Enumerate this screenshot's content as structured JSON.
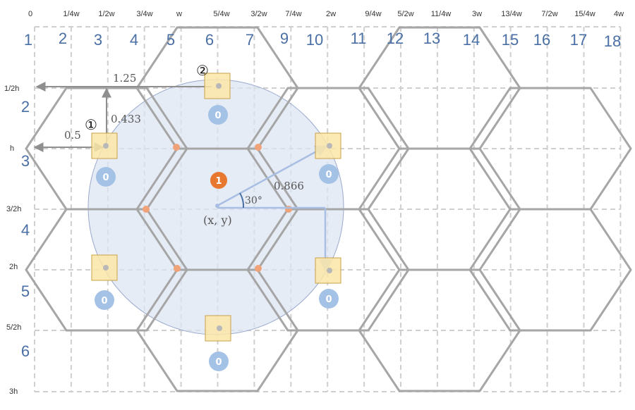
{
  "top_labels": [
    "0",
    "1/4w",
    "1/2w",
    "3/4w",
    "w",
    "5/4w",
    "3/2w",
    "7/4w",
    "2w",
    "9/4w",
    "5/2w",
    "11/4w",
    "3w",
    "13/4w",
    "7/2w",
    "15/4w",
    "4w"
  ],
  "left_labels": [
    "1/2h",
    "h",
    "3/2h",
    "2h",
    "5/2h",
    "3h"
  ],
  "column_numbers": [
    "1",
    "2",
    "3",
    "4",
    "5",
    "6",
    "7",
    "9",
    "10",
    "11",
    "12",
    "13",
    "14",
    "15",
    "16",
    "17",
    "18"
  ],
  "row_numbers": [
    "2",
    "3",
    "4",
    "5",
    "6"
  ],
  "measurements": {
    "horizontal": "1.25",
    "vertical": "0.433",
    "diagonal_short": "0.5",
    "diagonal_long": "0.866",
    "angle": "30°"
  },
  "center_label": "(x, y)",
  "markers": {
    "one": "①",
    "two": "②"
  },
  "center_badge": "1",
  "neighbor_badge": "0",
  "colors": {
    "hex_stroke": "#a6a6a6",
    "grid": "#cfcfcf",
    "circle_fill": "#dce4f3",
    "circle_stroke": "#9aa9cc",
    "badge_blue": "#a4c2e6",
    "badge_orange": "#e87830",
    "square_fill": "#fbe6a8",
    "square_stroke": "#c9a24a",
    "arrow_blue": "#a8bfe3",
    "arrow_gray": "#8f8f8f",
    "number_blue": "#4a6fa5"
  }
}
